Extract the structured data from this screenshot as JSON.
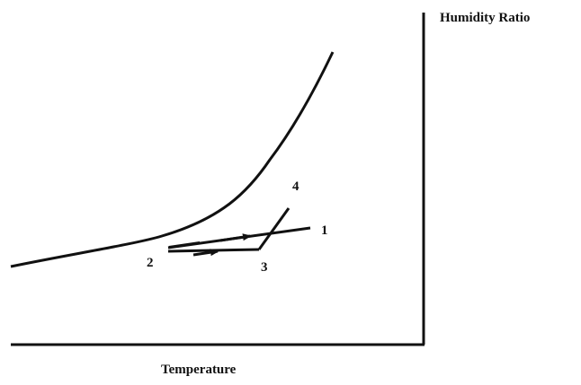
{
  "diagram": {
    "y_axis_title": "Humidity Ratio",
    "x_axis_title": "Temperature",
    "state_points": [
      {
        "label": "1"
      },
      {
        "label": "2"
      },
      {
        "label": "3"
      },
      {
        "label": "4"
      }
    ]
  }
}
